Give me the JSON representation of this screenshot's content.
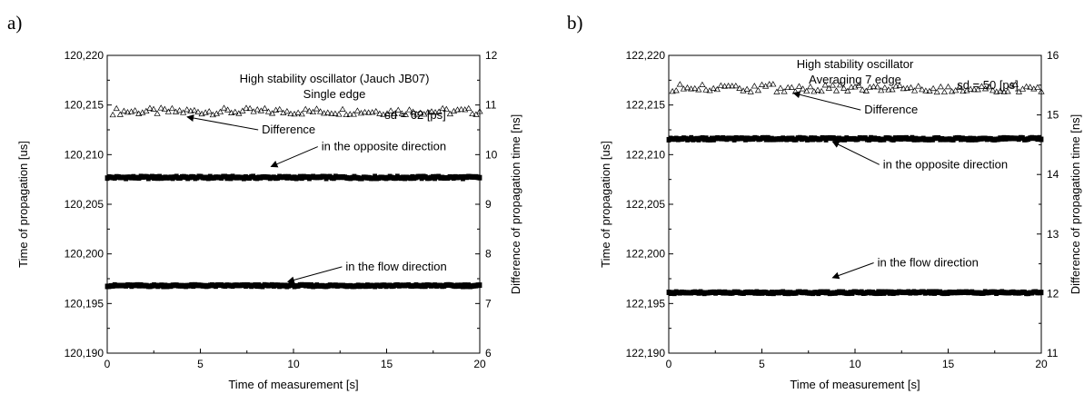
{
  "chart_data": [
    {
      "panel_label": "a)",
      "type": "scatter",
      "title_lines": [
        "High stability oscillator (Jauch JB07)",
        "Single edge"
      ],
      "sd_text": "sd = 62 [ps]",
      "xlabel": "Time of measurement [s]",
      "ylabel": "Time of propagation [us]",
      "y2label": "Difference of propagation time [ns]",
      "xlim": [
        0,
        20
      ],
      "ylim": [
        120190,
        120220
      ],
      "y2lim": [
        6,
        12
      ],
      "xticks": [
        "0",
        "5",
        "10",
        "15",
        "20"
      ],
      "yticks": [
        "120,190",
        "120,195",
        "120,200",
        "120,205",
        "120,210",
        "120,215",
        "120,220"
      ],
      "y2ticks": [
        "6",
        "7",
        "8",
        "9",
        "10",
        "11",
        "12"
      ],
      "annotations": [
        {
          "text": "Difference",
          "x": 8.3,
          "y": 120212.5,
          "arrow_to_x": 4.3,
          "arrow_to_y": 120213.8
        },
        {
          "text": "in the opposite direction",
          "x": 11.5,
          "y": 120210.8,
          "arrow_to_x": 8.8,
          "arrow_to_y": 120208.8
        },
        {
          "text": "in the flow direction",
          "x": 12.8,
          "y": 120198.7,
          "arrow_to_x": 9.7,
          "arrow_to_y": 120197.2
        }
      ],
      "series": [
        {
          "marker": "triangle-open",
          "axis": "y2",
          "mean": 10.87,
          "jitter": 0.07,
          "count": 100,
          "x_range": [
            0.3,
            20
          ]
        },
        {
          "marker": "square-filled",
          "axis": "y",
          "mean": 120207.7,
          "jitter": 0.1,
          "count": 200,
          "x_range": [
            0,
            20
          ]
        },
        {
          "marker": "square-filled",
          "axis": "y",
          "mean": 120196.8,
          "jitter": 0.08,
          "count": 200,
          "x_range": [
            0,
            20
          ]
        }
      ]
    },
    {
      "panel_label": "b)",
      "type": "scatter",
      "title_lines": [
        "High stability oscillator",
        "Averaging 7 edge"
      ],
      "sd_text": "sd = 50 [ps]",
      "xlabel": "Time of measurement [s]",
      "ylabel": "Time of propagation [us]",
      "y2label": "Difference of propagation time [ns]",
      "xlim": [
        0,
        20
      ],
      "ylim": [
        122190,
        122220
      ],
      "y2lim": [
        11,
        16
      ],
      "xticks": [
        "0",
        "5",
        "10",
        "15",
        "20"
      ],
      "yticks": [
        "122,190",
        "122,195",
        "122,200",
        "122,205",
        "122,210",
        "122,215",
        "122,220"
      ],
      "y2ticks": [
        "11",
        "12",
        "13",
        "14",
        "15",
        "16"
      ],
      "annotations": [
        {
          "text": "Difference",
          "x": 10.5,
          "y": 122214.5,
          "arrow_to_x": 6.7,
          "arrow_to_y": 122216.2
        },
        {
          "text": "in the opposite direction",
          "x": 11.5,
          "y": 122209.0,
          "arrow_to_x": 8.8,
          "arrow_to_y": 122211.3
        },
        {
          "text": "in the flow direction",
          "x": 11.2,
          "y": 122199.1,
          "arrow_to_x": 8.8,
          "arrow_to_y": 122197.6
        }
      ],
      "series": [
        {
          "marker": "triangle-open",
          "axis": "y2",
          "mean": 15.45,
          "jitter": 0.07,
          "count": 100,
          "x_range": [
            0.2,
            20
          ]
        },
        {
          "marker": "square-filled",
          "axis": "y",
          "mean": 122211.6,
          "jitter": 0.1,
          "count": 200,
          "x_range": [
            0,
            20
          ]
        },
        {
          "marker": "square-filled",
          "axis": "y",
          "mean": 122196.1,
          "jitter": 0.08,
          "count": 200,
          "x_range": [
            0,
            20
          ]
        }
      ]
    }
  ]
}
